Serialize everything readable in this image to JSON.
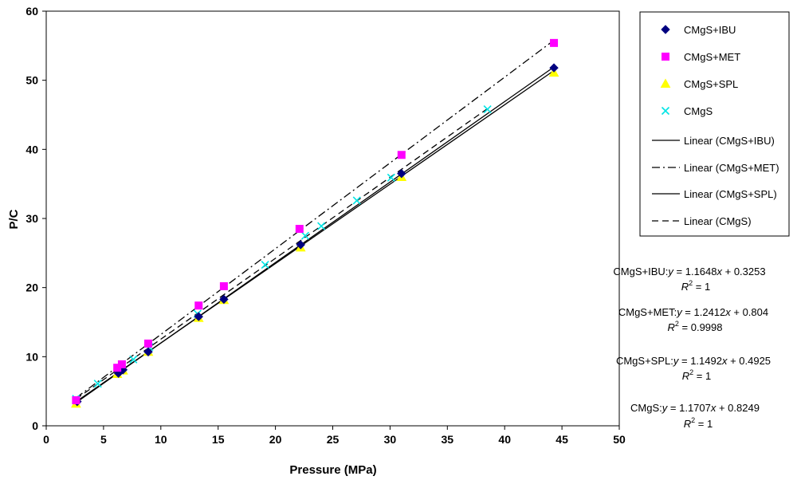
{
  "chart_data": {
    "type": "scatter",
    "title": "",
    "xlabel": "Pressure (MPa)",
    "ylabel": "P/C",
    "xlim": [
      0,
      50
    ],
    "ylim": [
      0,
      60
    ],
    "x_ticks": [
      0,
      5,
      10,
      15,
      20,
      25,
      30,
      35,
      40,
      45,
      50
    ],
    "y_ticks": [
      0,
      10,
      20,
      30,
      40,
      50,
      60
    ],
    "grid": false,
    "legend_position": "top-right",
    "series": [
      {
        "name": "CMgS+IBU",
        "marker": "diamond",
        "color": "#000080",
        "x": [
          2.7,
          6.3,
          6.7,
          8.9,
          13.3,
          15.5,
          22.2,
          31.0,
          44.3
        ],
        "y": [
          3.5,
          7.6,
          8.1,
          10.7,
          15.8,
          18.3,
          26.2,
          36.5,
          51.8
        ]
      },
      {
        "name": "CMgS+MET",
        "marker": "square",
        "color": "#ff00ff",
        "x": [
          2.6,
          6.2,
          6.6,
          8.9,
          13.3,
          15.5,
          22.1,
          31.0,
          44.3
        ],
        "y": [
          3.7,
          8.4,
          8.9,
          11.9,
          17.4,
          20.2,
          28.5,
          39.2,
          55.4
        ]
      },
      {
        "name": "CMgS+SPL",
        "marker": "triangle",
        "color": "#ffff00",
        "x": [
          2.6,
          6.2,
          6.7,
          8.9,
          13.3,
          15.5,
          22.2,
          31.0,
          44.3
        ],
        "y": [
          3.2,
          7.5,
          8.0,
          10.7,
          15.6,
          18.2,
          25.8,
          36.0,
          51.1
        ]
      },
      {
        "name": "CMgS",
        "marker": "x",
        "color": "#00e5e5",
        "x": [
          2.6,
          4.5,
          7.6,
          9.0,
          13.2,
          19.1,
          22.6,
          24.0,
          27.1,
          30.1,
          38.5
        ],
        "y": [
          3.9,
          6.1,
          9.6,
          11.4,
          16.2,
          23.3,
          27.5,
          28.9,
          32.6,
          35.9,
          45.8
        ]
      }
    ],
    "trendlines": [
      {
        "name": "Linear (CMgS+IBU)",
        "style": "solid",
        "slope": 1.1648,
        "intercept": 0.3253,
        "x_range": [
          2.6,
          44.3
        ]
      },
      {
        "name": "Linear (CMgS+MET)",
        "style": "dashdot",
        "slope": 1.2412,
        "intercept": 0.804,
        "x_range": [
          2.6,
          44.3
        ]
      },
      {
        "name": "Linear (CMgS+SPL)",
        "style": "solid",
        "slope": 1.1492,
        "intercept": 0.4925,
        "x_range": [
          2.6,
          44.3
        ]
      },
      {
        "name": "Linear (CMgS)",
        "style": "dashed",
        "slope": 1.1707,
        "intercept": 0.8249,
        "x_range": [
          2.6,
          38.5
        ]
      }
    ],
    "legend": [
      "CMgS+IBU",
      "CMgS+MET",
      "CMgS+SPL",
      "CMgS",
      "Linear (CMgS+IBU)",
      "Linear (CMgS+MET)",
      "Linear (CMgS+SPL)",
      "Linear (CMgS)"
    ],
    "equations": [
      {
        "label": "CMgS+IBU:",
        "y": "y",
        "rhs_pre": " = 1.1648",
        "x": "x",
        "rhs_post": " + 0.3253",
        "r2_name": "R",
        "r2_rhs": " = 1"
      },
      {
        "label": "CMgS+MET:",
        "y": "y",
        "rhs_pre": " = 1.2412",
        "x": "x",
        "rhs_post": " + 0.804",
        "r2_name": "R",
        "r2_rhs": " = 0.9998"
      },
      {
        "label": "CMgS+SPL:",
        "y": "y",
        "rhs_pre": " = 1.1492",
        "x": "x",
        "rhs_post": " + 0.4925",
        "r2_name": "R",
        "r2_rhs": " = 1"
      },
      {
        "label": "CMgS:",
        "y": "y",
        "rhs_pre": " = 1.1707",
        "x": "x",
        "rhs_post": " + 0.8249",
        "r2_name": "R",
        "r2_rhs": " = 1"
      }
    ],
    "r2_superscript": "2"
  }
}
